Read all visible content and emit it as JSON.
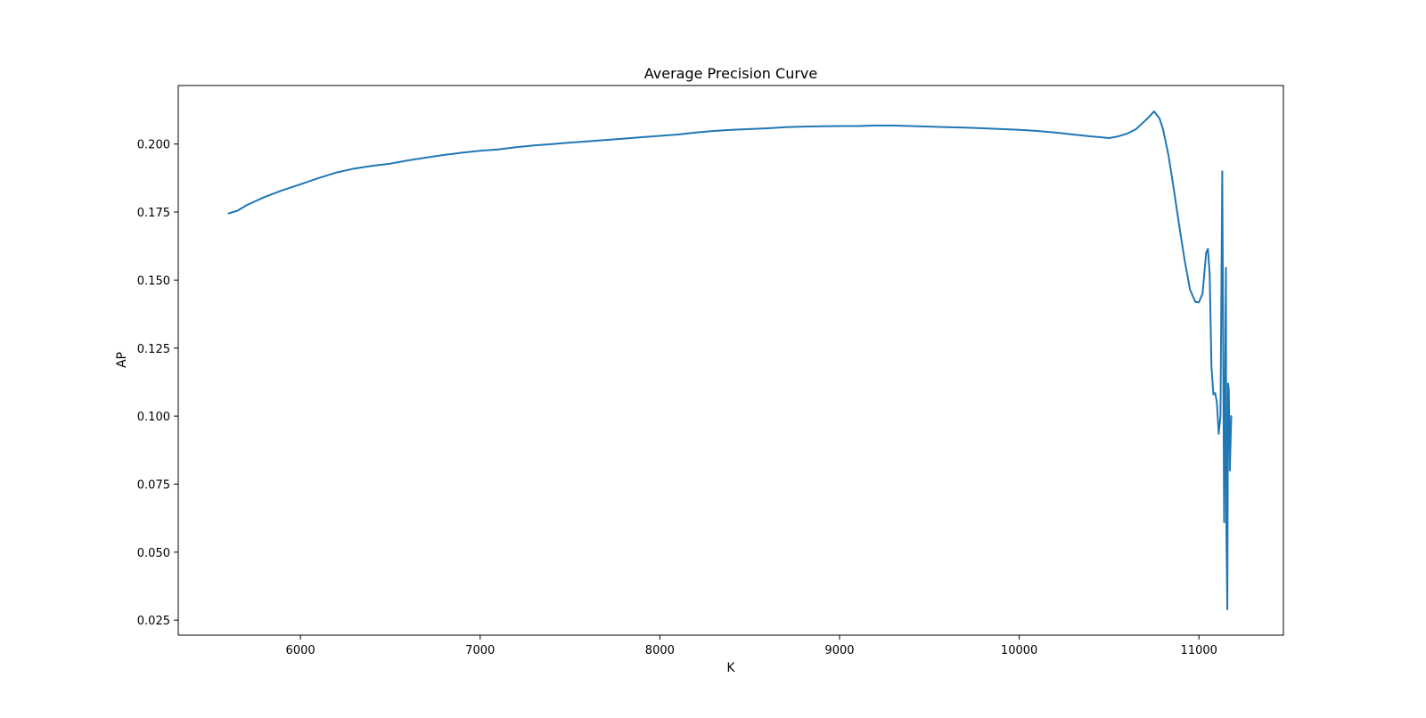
{
  "chart_data": {
    "type": "line",
    "title": "Average Precision Curve",
    "xlabel": "K",
    "ylabel": "AP",
    "xlim": [
      5320,
      11470
    ],
    "ylim": [
      0.0195,
      0.2215
    ],
    "xticks": [
      6000,
      7000,
      8000,
      9000,
      10000,
      11000
    ],
    "xtick_labels": [
      "6000",
      "7000",
      "8000",
      "9000",
      "10000",
      "11000"
    ],
    "yticks": [
      0.025,
      0.05,
      0.075,
      0.1,
      0.125,
      0.15,
      0.175,
      0.2
    ],
    "ytick_labels": [
      "0.025",
      "0.050",
      "0.075",
      "0.100",
      "0.125",
      "0.150",
      "0.175",
      "0.200"
    ],
    "grid": false,
    "legend": "none",
    "series": [
      {
        "color": "#1f77b4",
        "x": [
          5600,
          5650,
          5700,
          5800,
          5900,
          6000,
          6100,
          6200,
          6300,
          6400,
          6500,
          6600,
          6700,
          6800,
          6900,
          7000,
          7100,
          7200,
          7300,
          7400,
          7500,
          7600,
          7700,
          7800,
          7900,
          8000,
          8100,
          8200,
          8300,
          8400,
          8500,
          8600,
          8700,
          8800,
          8900,
          9000,
          9100,
          9200,
          9300,
          9400,
          9500,
          9600,
          9700,
          9800,
          9900,
          10000,
          10100,
          10200,
          10300,
          10400,
          10450,
          10500,
          10550,
          10600,
          10650,
          10700,
          10730,
          10750,
          10780,
          10800,
          10830,
          10860,
          10890,
          10920,
          10950,
          10980,
          11000,
          11020,
          11040,
          11050,
          11060,
          11070,
          11080,
          11090,
          11100,
          11110,
          11120,
          11130,
          11140,
          11150,
          11152,
          11158,
          11162,
          11166,
          11170,
          11172,
          11176,
          11180
        ],
        "y": [
          0.1745,
          0.1755,
          0.1775,
          0.1805,
          0.183,
          0.1852,
          0.1875,
          0.1895,
          0.191,
          0.192,
          0.1928,
          0.194,
          0.195,
          0.196,
          0.1968,
          0.1975,
          0.198,
          0.1988,
          0.1995,
          0.2,
          0.2005,
          0.201,
          0.2015,
          0.202,
          0.2025,
          0.203,
          0.2035,
          0.2042,
          0.2048,
          0.2052,
          0.2055,
          0.2058,
          0.2062,
          0.2064,
          0.2065,
          0.2066,
          0.2066,
          0.2068,
          0.2068,
          0.2066,
          0.2064,
          0.2062,
          0.206,
          0.2058,
          0.2055,
          0.2052,
          0.2048,
          0.2042,
          0.2035,
          0.2028,
          0.2025,
          0.2022,
          0.2028,
          0.2038,
          0.2055,
          0.2085,
          0.2105,
          0.212,
          0.2095,
          0.2055,
          0.196,
          0.1835,
          0.17,
          0.1575,
          0.1465,
          0.142,
          0.1418,
          0.145,
          0.16,
          0.1615,
          0.152,
          0.118,
          0.108,
          0.1085,
          0.105,
          0.0935,
          0.1,
          0.19,
          0.061,
          0.1545,
          0.0615,
          0.029,
          0.112,
          0.11,
          0.095,
          0.08,
          0.09,
          0.1
        ]
      }
    ]
  }
}
